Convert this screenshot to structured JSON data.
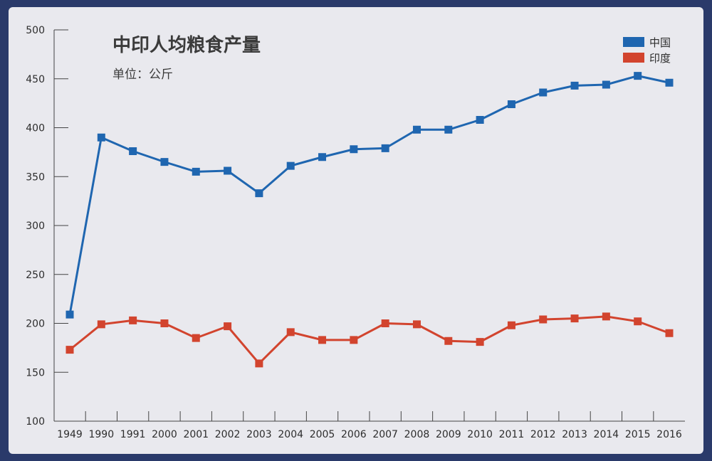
{
  "chart_data": {
    "type": "line",
    "title": "中印人均粮食产量",
    "subtitle": "单位：公斤",
    "x": [
      "1949",
      "1990",
      "1991",
      "2000",
      "2001",
      "2002",
      "2003",
      "2004",
      "2005",
      "2006",
      "2007",
      "2008",
      "2009",
      "2010",
      "2011",
      "2012",
      "2013",
      "2014",
      "2015",
      "2016"
    ],
    "ylim": [
      100,
      500
    ],
    "yticks": [
      100,
      150,
      200,
      250,
      300,
      350,
      400,
      450,
      500
    ],
    "legend_position": "top-right",
    "grid": false,
    "series": [
      {
        "name": "中国",
        "color": "#1f66b0",
        "values": [
          209,
          390,
          376,
          365,
          355,
          356,
          333,
          361,
          370,
          378,
          379,
          398,
          398,
          408,
          424,
          436,
          443,
          444,
          453,
          446
        ]
      },
      {
        "name": "印度",
        "color": "#d2442e",
        "values": [
          173,
          199,
          203,
          200,
          185,
          197,
          159,
          191,
          183,
          183,
          200,
          199,
          182,
          181,
          198,
          204,
          205,
          207,
          202,
          190
        ]
      }
    ]
  }
}
